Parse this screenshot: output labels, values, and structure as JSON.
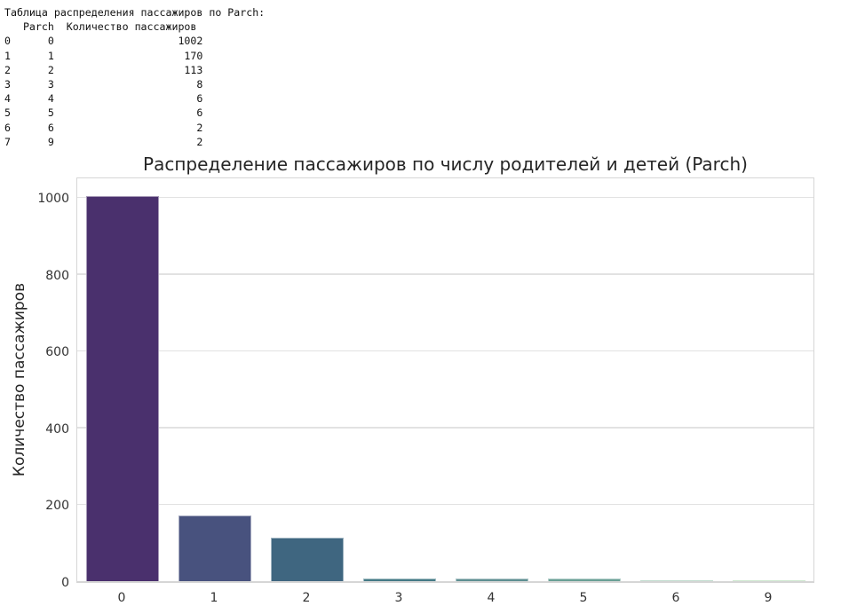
{
  "console": {
    "header": "Таблица распределения пассажиров по Parch:",
    "columns_line": "   Parch  Количество пассажиров",
    "rows": [
      {
        "index": "0",
        "parch": "0",
        "count": "1002"
      },
      {
        "index": "1",
        "parch": "1",
        "count": "170"
      },
      {
        "index": "2",
        "parch": "2",
        "count": "113"
      },
      {
        "index": "3",
        "parch": "3",
        "count": "8"
      },
      {
        "index": "4",
        "parch": "4",
        "count": "6"
      },
      {
        "index": "5",
        "parch": "5",
        "count": "6"
      },
      {
        "index": "6",
        "parch": "6",
        "count": "2"
      },
      {
        "index": "7",
        "parch": "9",
        "count": "2"
      }
    ]
  },
  "chart_data": {
    "type": "bar",
    "title": "Распределение пассажиров по числу родителей и детей (Parch)",
    "xlabel": "",
    "ylabel": "Количество пассажиров",
    "categories": [
      "0",
      "1",
      "2",
      "3",
      "4",
      "5",
      "6",
      "9"
    ],
    "values": [
      1002,
      170,
      113,
      8,
      6,
      6,
      2,
      2
    ],
    "colors": [
      "#4a306d",
      "#48527e",
      "#3f6680",
      "#457a86",
      "#5e8f92",
      "#6aa096",
      "#7fb79a",
      "#9bcf9c"
    ],
    "ylim": [
      0,
      1055
    ],
    "yticks": [
      0,
      200,
      400,
      600,
      800,
      1000
    ],
    "grid": true,
    "legend": null
  }
}
